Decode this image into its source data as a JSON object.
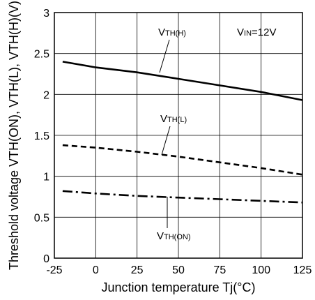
{
  "chart_data": {
    "type": "line",
    "xlabel": "Junction temperature Tj(°C)",
    "ylabel": "Threshold voltage VTH(ON), VTH(L), VTH(H)(V)",
    "xlim": [
      -25,
      125
    ],
    "ylim": [
      0,
      3
    ],
    "x_ticks": [
      "-25",
      "0",
      "25",
      "50",
      "75",
      "100",
      "125"
    ],
    "y_ticks": [
      "0",
      "0.5",
      "1",
      "1.5",
      "2",
      "2.5",
      "3"
    ],
    "grid": true,
    "condition": {
      "main": "V",
      "sub": "IN",
      "suffix": "=12V"
    },
    "series": [
      {
        "name": "VTH(H)",
        "label": {
          "main": "V",
          "sub": "TH(H)"
        },
        "style": "solid",
        "x": [
          -20,
          0,
          25,
          50,
          75,
          100,
          125
        ],
        "y": [
          2.4,
          2.33,
          2.27,
          2.19,
          2.11,
          2.03,
          1.93
        ]
      },
      {
        "name": "VTH(L)",
        "label": {
          "main": "V",
          "sub": "TH(L)"
        },
        "style": "dashed",
        "x": [
          -20,
          0,
          25,
          50,
          75,
          100,
          125
        ],
        "y": [
          1.38,
          1.35,
          1.3,
          1.24,
          1.17,
          1.1,
          1.02
        ]
      },
      {
        "name": "VTH(ON)",
        "label": {
          "main": "V",
          "sub": "TH(ON)"
        },
        "style": "dashdot",
        "x": [
          -20,
          0,
          25,
          50,
          75,
          100,
          125
        ],
        "y": [
          0.82,
          0.79,
          0.76,
          0.74,
          0.72,
          0.7,
          0.68
        ]
      }
    ]
  }
}
